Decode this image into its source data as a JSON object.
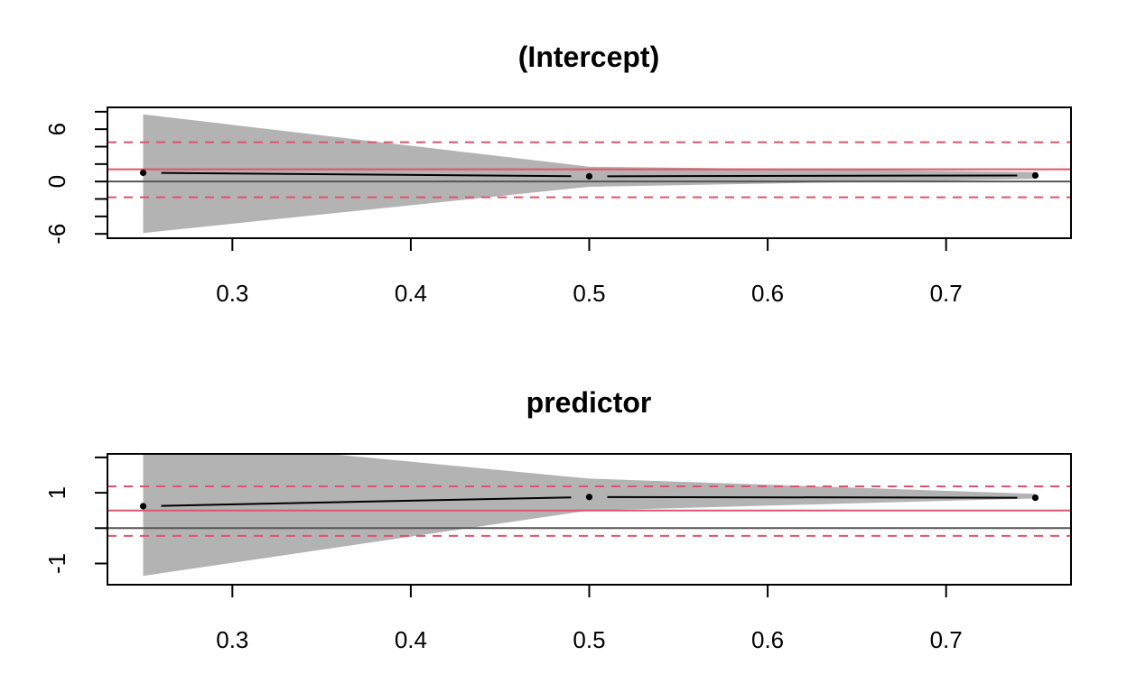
{
  "colors": {
    "band": "#b3b3b3",
    "estimate": "#000000",
    "zero_line": "#555555",
    "reference": "#df536b"
  },
  "chart_data": [
    {
      "type": "line",
      "title": "(Intercept)",
      "xlim": [
        0.23,
        0.77
      ],
      "ylim": [
        -6.5,
        8.5
      ],
      "x_ticks": [
        0.3,
        0.4,
        0.5,
        0.6,
        0.7
      ],
      "x_tick_labels": [
        "0.3",
        "0.4",
        "0.5",
        "0.6",
        "0.7"
      ],
      "y_ticks": [
        -6,
        -4,
        -2,
        0,
        2,
        4,
        6,
        8
      ],
      "y_tick_labels": [
        "-6",
        "0",
        "6"
      ],
      "y_labeled_ticks": [
        -6,
        0,
        6
      ],
      "grid": false,
      "points": {
        "x": [
          0.25,
          0.5,
          0.75
        ],
        "y": [
          1.0,
          0.6,
          0.7
        ]
      },
      "band": {
        "x": [
          0.25,
          0.5,
          0.75
        ],
        "upper": [
          7.7,
          1.7,
          1.1
        ],
        "lower": [
          -5.9,
          -0.6,
          0.3
        ]
      },
      "zero_line": 0,
      "reference_line": 1.4,
      "reference_dashed": [
        4.5,
        -1.8
      ]
    },
    {
      "type": "line",
      "title": "predictor",
      "xlim": [
        0.23,
        0.77
      ],
      "ylim": [
        -1.6,
        2.1
      ],
      "x_ticks": [
        0.3,
        0.4,
        0.5,
        0.6,
        0.7
      ],
      "x_tick_labels": [
        "0.3",
        "0.4",
        "0.5",
        "0.6",
        "0.7"
      ],
      "y_ticks": [
        -1,
        0,
        1,
        2
      ],
      "y_tick_labels": [
        "-1",
        "1"
      ],
      "y_labeled_ticks": [
        -1,
        1
      ],
      "grid": false,
      "points": {
        "x": [
          0.25,
          0.5,
          0.75
        ],
        "y": [
          0.62,
          0.88,
          0.86
        ]
      },
      "band": {
        "x": [
          0.25,
          0.5,
          0.75
        ],
        "upper": [
          2.6,
          1.4,
          0.97
        ],
        "lower": [
          -1.35,
          0.5,
          0.84
        ]
      },
      "zero_line": 0,
      "reference_line": 0.5,
      "reference_dashed": [
        1.18,
        -0.22
      ]
    }
  ]
}
